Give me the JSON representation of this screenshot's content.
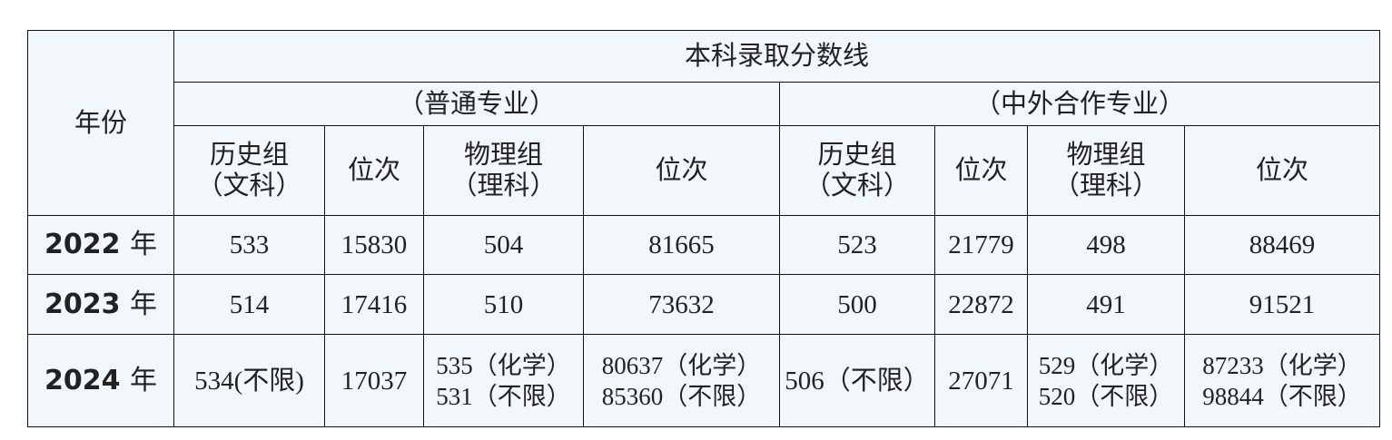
{
  "header": {
    "year_label": "年份",
    "title": "本科录取分数线",
    "groups": [
      "（普通专业）",
      "（中外合作专业）"
    ],
    "columns": [
      [
        "历史组",
        "（文科）"
      ],
      [
        "位次"
      ],
      [
        "物理组",
        "（理科）"
      ],
      [
        "位次"
      ],
      [
        "历史组",
        "（文科）"
      ],
      [
        "位次"
      ],
      [
        "物理组",
        "（理科）"
      ],
      [
        "位次"
      ]
    ]
  },
  "rows": [
    {
      "year": "2022",
      "unit": "年",
      "cells": [
        [
          "533"
        ],
        [
          "15830"
        ],
        [
          "504"
        ],
        [
          "81665"
        ],
        [
          "523"
        ],
        [
          "21779"
        ],
        [
          "498"
        ],
        [
          "88469"
        ]
      ]
    },
    {
      "year": "2023",
      "unit": "年",
      "cells": [
        [
          "514"
        ],
        [
          "17416"
        ],
        [
          "510"
        ],
        [
          "73632"
        ],
        [
          "500"
        ],
        [
          "22872"
        ],
        [
          "491"
        ],
        [
          "91521"
        ]
      ]
    },
    {
      "year": "2024",
      "unit": "年",
      "cells": [
        [
          "534(不限)"
        ],
        [
          "17037"
        ],
        [
          "535（化学）",
          "531（不限）"
        ],
        [
          "80637（化学）",
          "85360（不限）"
        ],
        [
          "506（不限）"
        ],
        [
          "27071"
        ],
        [
          "529（化学）",
          "520（不限）"
        ],
        [
          "87233（化学）",
          "98844（不限）"
        ]
      ]
    }
  ]
}
